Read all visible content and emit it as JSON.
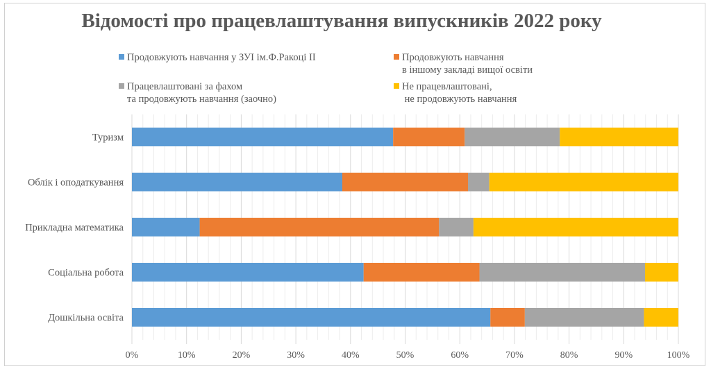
{
  "chart_data": {
    "type": "bar",
    "orientation": "horizontal",
    "stacked": "percent",
    "title": "Відомості про працевлаштування випускників 2022 року",
    "categories": [
      "Туризм",
      "Облік і оподаткування",
      "Прикладна математика",
      "Соціальна робота",
      "Дошкільна освіта"
    ],
    "series": [
      {
        "name": "Продовжують навчання у ЗУІ ім.Ф.Ракоці ІІ",
        "name_lines": [
          "Продовжують навчання у ЗУІ ім.Ф.Ракоці ІІ"
        ],
        "color": "#5b9bd5",
        "values": [
          47.8,
          38.5,
          12.4,
          42.4,
          65.6
        ]
      },
      {
        "name": "Продовжують навчання в іншому закладі вищої освіти",
        "name_lines": [
          "Продовжують навчання",
          "в іншому закладі вищої освіти"
        ],
        "color": "#ed7d31",
        "values": [
          13.1,
          23.0,
          43.8,
          21.2,
          6.3
        ]
      },
      {
        "name": "Працевлаштовані за фахом та продовжують навчання (заочно)",
        "name_lines": [
          "Працевлаштовані за фахом",
          "та продовжують навчання (заочно)"
        ],
        "color": "#a5a5a5",
        "values": [
          17.4,
          3.9,
          6.3,
          30.3,
          21.8
        ]
      },
      {
        "name": "Не працевлаштовані, не продовжують навчання",
        "name_lines": [
          "Не працевлаштовані,",
          " не продовжують навчання"
        ],
        "color": "#ffc000",
        "values": [
          21.7,
          34.6,
          37.5,
          6.1,
          6.3
        ]
      }
    ],
    "xlim": [
      0,
      100
    ],
    "xticks": [
      "0%",
      "10%",
      "20%",
      "30%",
      "40%",
      "50%",
      "60%",
      "70%",
      "80%",
      "90%",
      "100%"
    ],
    "grid": true,
    "legend": "top"
  }
}
